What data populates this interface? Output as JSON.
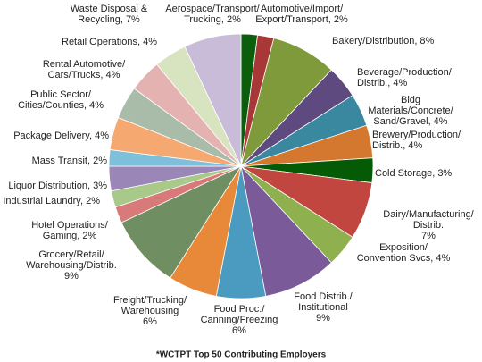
{
  "chart_data": {
    "type": "pie",
    "categories": [
      [
        "Aerospace/Transport/",
        "Trucking, 2%"
      ],
      [
        "Automotive/Import/",
        "Export/Transport, 2%"
      ],
      [
        "Bakery/Distribution, 8%"
      ],
      [
        "Beverage/Production/",
        "Distrib., 4%"
      ],
      [
        "Bldg",
        "Materials/Concrete/",
        "Sand/Gravel, 4%"
      ],
      [
        "Brewery/Production/",
        "Distrib., 4%"
      ],
      [
        "Cold Storage, 3%"
      ],
      [
        "Dairy/Manufacturing/",
        "Distrib.",
        "7%"
      ],
      [
        "Exposition/",
        "Convention Svcs, 4%"
      ],
      [
        "Food Distrib./",
        "Institutional",
        "9%"
      ],
      [
        "Food Proc./",
        "Canning/Freezing",
        "6%"
      ],
      [
        "Freight/Trucking/",
        "Warehousing",
        "6%"
      ],
      [
        "Grocery/Retail/",
        "Warehousing/Distrib.",
        "9%"
      ],
      [
        "Hotel Operations/",
        "Gaming, 2%"
      ],
      [
        "Industrial Laundry, 2%"
      ],
      [
        "Liquor Distribution, 3%"
      ],
      [
        "Mass Transit, 2%"
      ],
      [
        "Package Delivery, 4%"
      ],
      [
        "Public Sector/",
        "Cities/Counties, 4%"
      ],
      [
        "Rental Automotive/",
        "Cars/Trucks, 4%"
      ],
      [
        "Retail Operations, 4%"
      ],
      [
        "Waste Disposal &",
        "Recycling, 7%"
      ]
    ],
    "values": [
      2,
      2,
      8,
      4,
      4,
      4,
      3,
      7,
      4,
      9,
      6,
      6,
      9,
      2,
      2,
      3,
      2,
      4,
      4,
      4,
      4,
      7
    ],
    "colors": [
      "#0b5e0b",
      "#a83838",
      "#7f9a3a",
      "#5e4a7e",
      "#3a87a0",
      "#d4782f",
      "#055a05",
      "#c0463f",
      "#8fb04f",
      "#7b5a9a",
      "#4a9bbf",
      "#e8893a",
      "#6f8f63",
      "#d87a7a",
      "#a9c98a",
      "#9b86b8",
      "#7ec0da",
      "#f5a870",
      "#a9bba9",
      "#e5b2b2",
      "#d8e4bf",
      "#c9bcd8"
    ],
    "note": "*WCTPT Top 50 Contributing Employers"
  }
}
